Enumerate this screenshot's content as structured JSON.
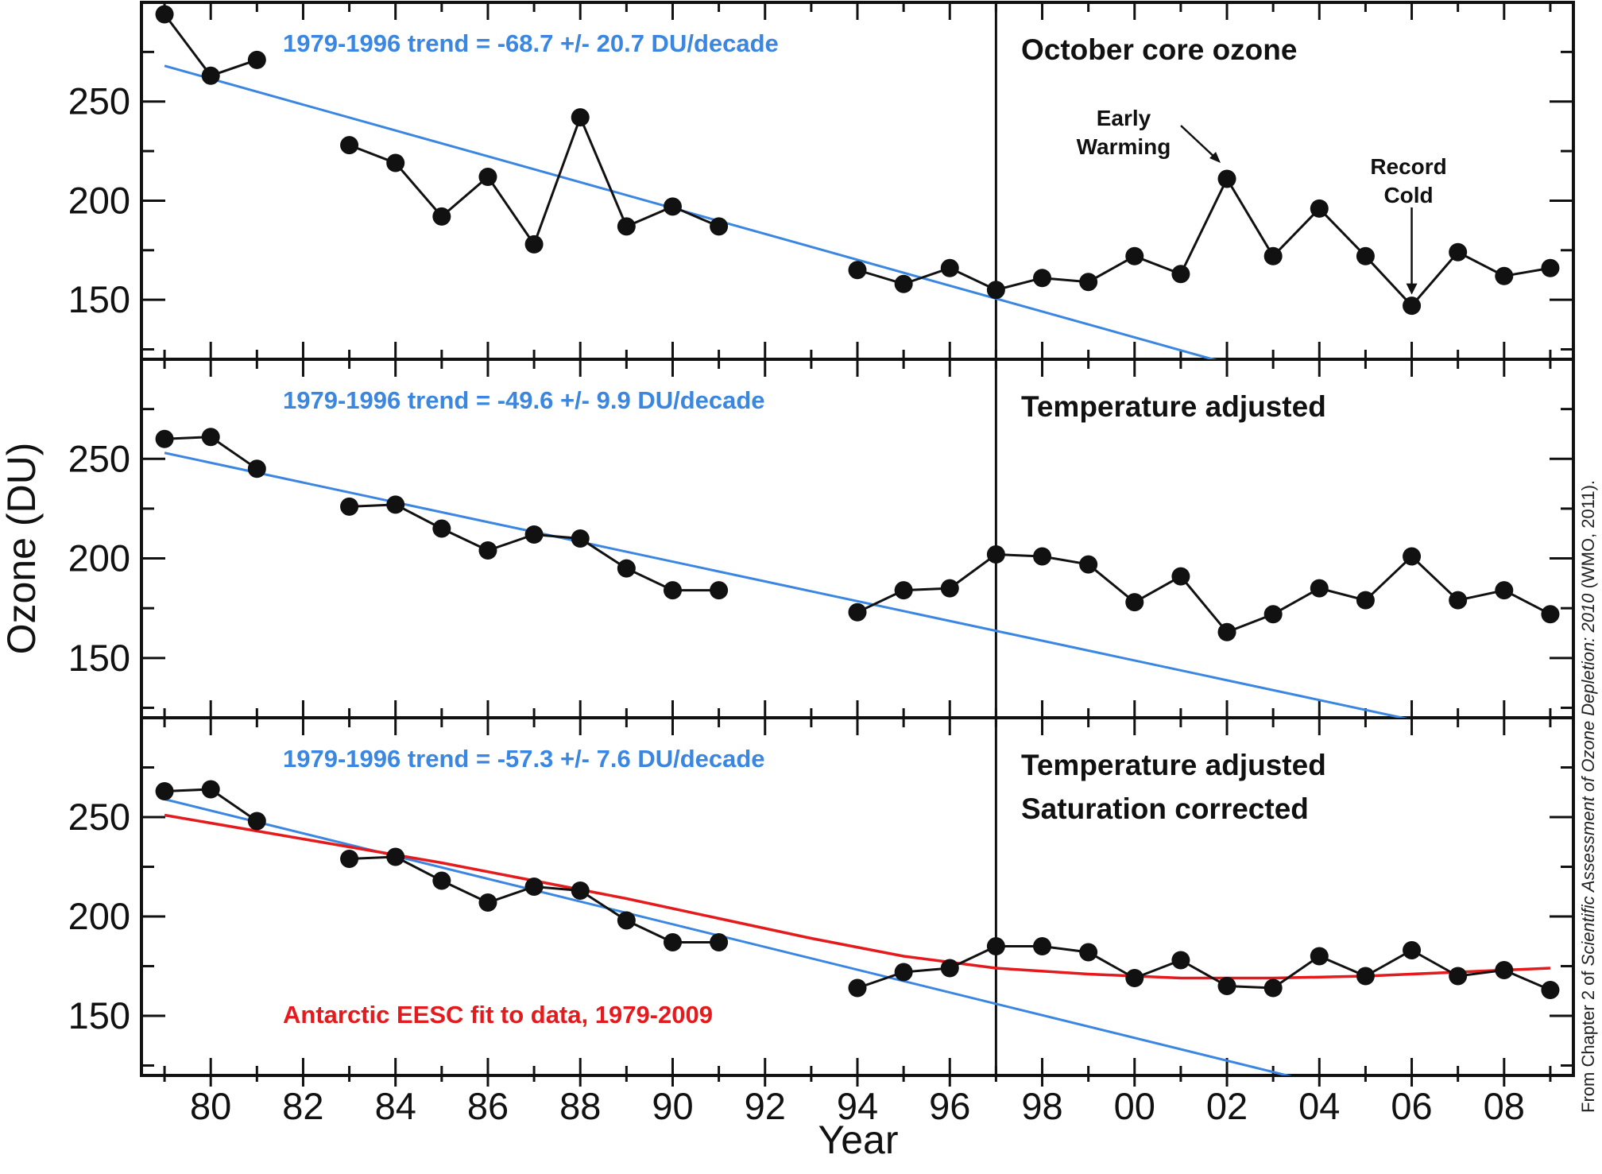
{
  "chart_data": [
    {
      "type": "line",
      "panel_title": [
        "October core ozone"
      ],
      "trend_label": "1979-1996 trend = -68.7 +/- 20.7 DU/decade",
      "trend_line": {
        "x": [
          1979,
          2002
        ],
        "y": [
          268,
          118
        ]
      },
      "annotations": [
        {
          "text": [
            "Early",
            "Warming"
          ],
          "x": 2002,
          "y": 211
        },
        {
          "text": [
            "Record",
            "Cold"
          ],
          "x": 2006,
          "y": 147
        }
      ],
      "series": [
        {
          "x": [
            1979,
            1980,
            1981,
            1983,
            1984,
            1985,
            1986,
            1987,
            1988,
            1989,
            1990,
            1991,
            1994,
            1995,
            1996,
            1997,
            1998,
            1999,
            2000,
            2001,
            2002,
            2003,
            2004,
            2005,
            2006,
            2007,
            2008,
            2009
          ],
          "y": [
            294,
            263,
            271,
            228,
            219,
            192,
            212,
            178,
            242,
            187,
            197,
            187,
            165,
            158,
            166,
            155,
            161,
            159,
            172,
            163,
            211,
            172,
            196,
            172,
            147,
            174,
            162,
            166
          ]
        }
      ]
    },
    {
      "type": "line",
      "panel_title": [
        "Temperature adjusted"
      ],
      "trend_label": "1979-1996 trend = -49.6 +/- 9.9 DU/decade",
      "trend_line": {
        "x": [
          1979,
          2007
        ],
        "y": [
          253,
          114
        ]
      },
      "series": [
        {
          "x": [
            1979,
            1980,
            1981,
            1983,
            1984,
            1985,
            1986,
            1987,
            1988,
            1989,
            1990,
            1991,
            1994,
            1995,
            1996,
            1997,
            1998,
            1999,
            2000,
            2001,
            2002,
            2003,
            2004,
            2005,
            2006,
            2007,
            2008,
            2009
          ],
          "y": [
            260,
            261,
            245,
            226,
            227,
            215,
            204,
            212,
            210,
            195,
            184,
            184,
            173,
            184,
            185,
            202,
            201,
            197,
            178,
            191,
            163,
            172,
            185,
            179,
            201,
            179,
            184,
            172
          ]
        }
      ]
    },
    {
      "type": "line",
      "panel_title": [
        "Temperature adjusted",
        "Saturation corrected"
      ],
      "trend_label": "1979-1996 trend = -57.3 +/- 7.6 DU/decade",
      "trend_line": {
        "x": [
          1979,
          2004
        ],
        "y": [
          259,
          116
        ]
      },
      "fit_label": "Antarctic EESC fit to data, 1979-2009",
      "fit_curve": {
        "x": [
          1979,
          1981,
          1983,
          1985,
          1987,
          1989,
          1991,
          1993,
          1995,
          1997,
          1999,
          2001,
          2003,
          2005,
          2007,
          2009
        ],
        "y": [
          251,
          243,
          235,
          227,
          218,
          209,
          199,
          189,
          180,
          174,
          171,
          169,
          169,
          170,
          172,
          174
        ]
      },
      "series": [
        {
          "x": [
            1979,
            1980,
            1981,
            1983,
            1984,
            1985,
            1986,
            1987,
            1988,
            1989,
            1990,
            1991,
            1994,
            1995,
            1996,
            1997,
            1998,
            1999,
            2000,
            2001,
            2002,
            2003,
            2004,
            2005,
            2006,
            2007,
            2008,
            2009
          ],
          "y": [
            263,
            264,
            248,
            229,
            230,
            218,
            207,
            215,
            213,
            198,
            187,
            187,
            164,
            172,
            174,
            185,
            185,
            182,
            169,
            178,
            165,
            164,
            180,
            170,
            183,
            170,
            173,
            163
          ]
        }
      ]
    }
  ],
  "axes": {
    "y_title": "Ozone (DU)",
    "x_title": "Year",
    "y_ticks": [
      150,
      200,
      250
    ],
    "y_tick_labels": [
      "150",
      "200",
      "250"
    ],
    "x_ticks": [
      1980,
      1982,
      1984,
      1986,
      1988,
      1990,
      1992,
      1994,
      1996,
      1998,
      2000,
      2002,
      2004,
      2006,
      2008
    ],
    "x_tick_labels": [
      "80",
      "82",
      "84",
      "86",
      "88",
      "90",
      "92",
      "94",
      "96",
      "98",
      "00",
      "02",
      "04",
      "06",
      "08"
    ],
    "xlim": [
      1978.5,
      2009.5
    ],
    "ylim": [
      120,
      300
    ],
    "marker_line_year": 1997
  },
  "colors": {
    "trend": "#3a86e0",
    "fit": "#e41a1c",
    "data": "#111111",
    "frame": "#111111"
  },
  "credit": {
    "prefix": "From Chapter 2 of ",
    "italic": "Scientific Assessment of Ozone Depletion: 2010",
    "suffix": " (WMO, 2011)."
  }
}
